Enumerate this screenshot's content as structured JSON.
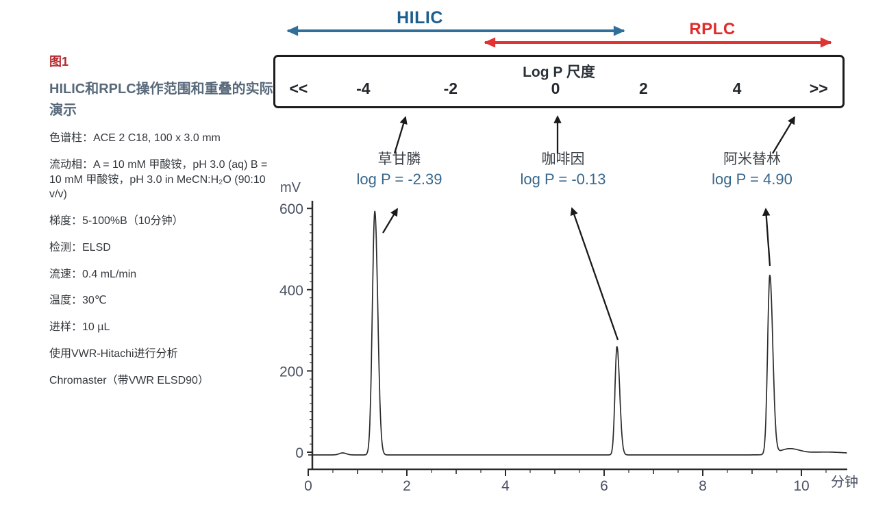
{
  "figure": {
    "tag": "图1",
    "title": "HILIC和RPLC操作范围和重叠的实际演示",
    "conditions": [
      "色谱柱：ACE 2 C18, 100 x 3.0 mm",
      "流动相：A = 10 mM 甲酸铵，pH 3.0 (aq) B = 10 mM 甲酸铵，pH 3.0 in MeCN:H₂O (90:10 v/v)",
      "梯度：5-100%B（10分钟）",
      "检测：ELSD",
      "流速：0.4 mL/min",
      "温度：30℃",
      "进样：10 µL",
      "使用VWR-Hitachi进行分析",
      "Chromaster（带VWR ELSD90）"
    ]
  },
  "technique_arrows": {
    "hilic": {
      "label": "HILIC",
      "color": "#2f6f99"
    },
    "rplc": {
      "label": "RPLC",
      "color": "#e23333"
    }
  },
  "logp_scale": {
    "title": "Log P 尺度",
    "ticks": [
      "<<",
      "-4",
      "-2",
      "0",
      "2",
      "4",
      ">>"
    ]
  },
  "compounds": [
    {
      "name": "草甘膦",
      "logp_label": "log P = -2.39",
      "log_p": -2.39
    },
    {
      "name": "咖啡因",
      "logp_label": "log P = -0.13",
      "log_p": -0.13
    },
    {
      "name": "阿米替林",
      "logp_label": "log P = 4.90",
      "log_p": 4.9
    }
  ],
  "chart_data": {
    "type": "line",
    "title": "",
    "xlabel": "分钟",
    "ylabel": "mV",
    "xlim": [
      0,
      10.9
    ],
    "ylim": [
      0,
      620
    ],
    "grid": false,
    "x_ticks": [
      0,
      2,
      4,
      6,
      8,
      10
    ],
    "y_ticks": [
      0,
      200,
      400,
      600
    ],
    "legend": "none",
    "peaks": [
      {
        "compound": "草甘膦",
        "log_p": -2.39,
        "rt_min": 1.35,
        "height_mV": 592,
        "sigma_left_min": 0.05,
        "sigma_right_min": 0.06
      },
      {
        "compound": "咖啡因",
        "log_p": -0.13,
        "rt_min": 6.26,
        "height_mV": 263,
        "sigma_left_min": 0.04,
        "sigma_right_min": 0.055
      },
      {
        "compound": "阿米替林",
        "log_p": 4.9,
        "rt_min": 9.36,
        "height_mV": 434,
        "sigma_left_min": 0.045,
        "sigma_right_min": 0.06
      }
    ],
    "baseline_features": [
      {
        "rt_min": 0.7,
        "height_mV": 5,
        "sigma_min": 0.07
      },
      {
        "rt_min": 9.75,
        "height_mV": 13,
        "sigma_min": 0.2
      },
      {
        "rt_min": 10.5,
        "height_mV": 7,
        "sigma_min": 0.5
      }
    ]
  }
}
